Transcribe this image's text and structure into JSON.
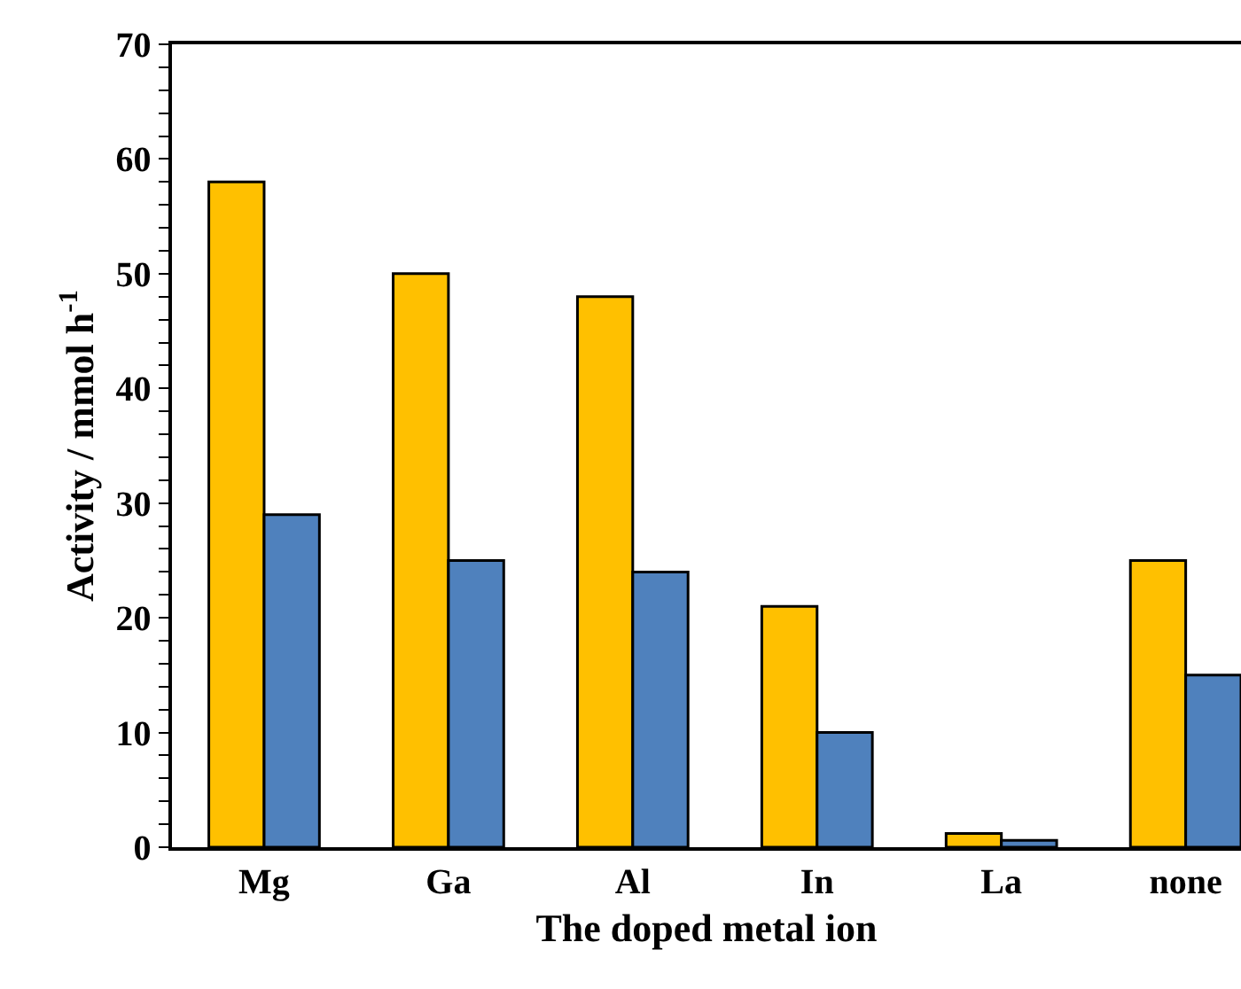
{
  "chart_data": {
    "type": "bar",
    "xlabel": "The doped metal ion",
    "ylabel": "Activity / mmol h$^{-1}$",
    "categories": [
      "Mg",
      "Ga",
      "Al",
      "In",
      "La",
      "none"
    ],
    "series": [
      {
        "color": "#ffc000",
        "values": [
          58,
          50,
          48,
          21,
          1.2,
          25
        ]
      },
      {
        "color": "#4f81bd",
        "values": [
          29,
          25,
          24,
          10,
          0.6,
          15
        ]
      }
    ],
    "ylim": [
      0,
      70
    ],
    "yticks": [
      0,
      {
        "value": 2,
        "label": null
      },
      {
        "value": 4,
        "label": null
      },
      {
        "value": 6,
        "label": null
      },
      {
        "value": 8,
        "label": null
      },
      10,
      {
        "value": 12,
        "label": null
      },
      {
        "value": 14,
        "label": null
      },
      {
        "value": 16,
        "label": null
      },
      {
        "value": 18,
        "label": null
      },
      20,
      {
        "value": 22,
        "label": null
      },
      {
        "value": 24,
        "label": null
      },
      {
        "value": 26,
        "label": null
      },
      {
        "value": 28,
        "label": null
      },
      30,
      {
        "value": 32,
        "label": null
      },
      {
        "value": 34,
        "label": null
      },
      {
        "value": 36,
        "label": null
      },
      {
        "value": 38,
        "label": null
      },
      40,
      {
        "value": 42,
        "label": null
      },
      {
        "value": 44,
        "label": null
      },
      {
        "value": 46,
        "label": null
      },
      {
        "value": 48,
        "label": null
      },
      50,
      {
        "value": 52,
        "label": null
      },
      {
        "value": 54,
        "label": null
      },
      {
        "value": 56,
        "label": null
      },
      {
        "value": 58,
        "label": null
      },
      60,
      {
        "value": 62,
        "label": null
      },
      {
        "value": 64,
        "label": null
      },
      {
        "value": 66,
        "label": null
      },
      {
        "value": 68,
        "label": null
      },
      70
    ]
  }
}
